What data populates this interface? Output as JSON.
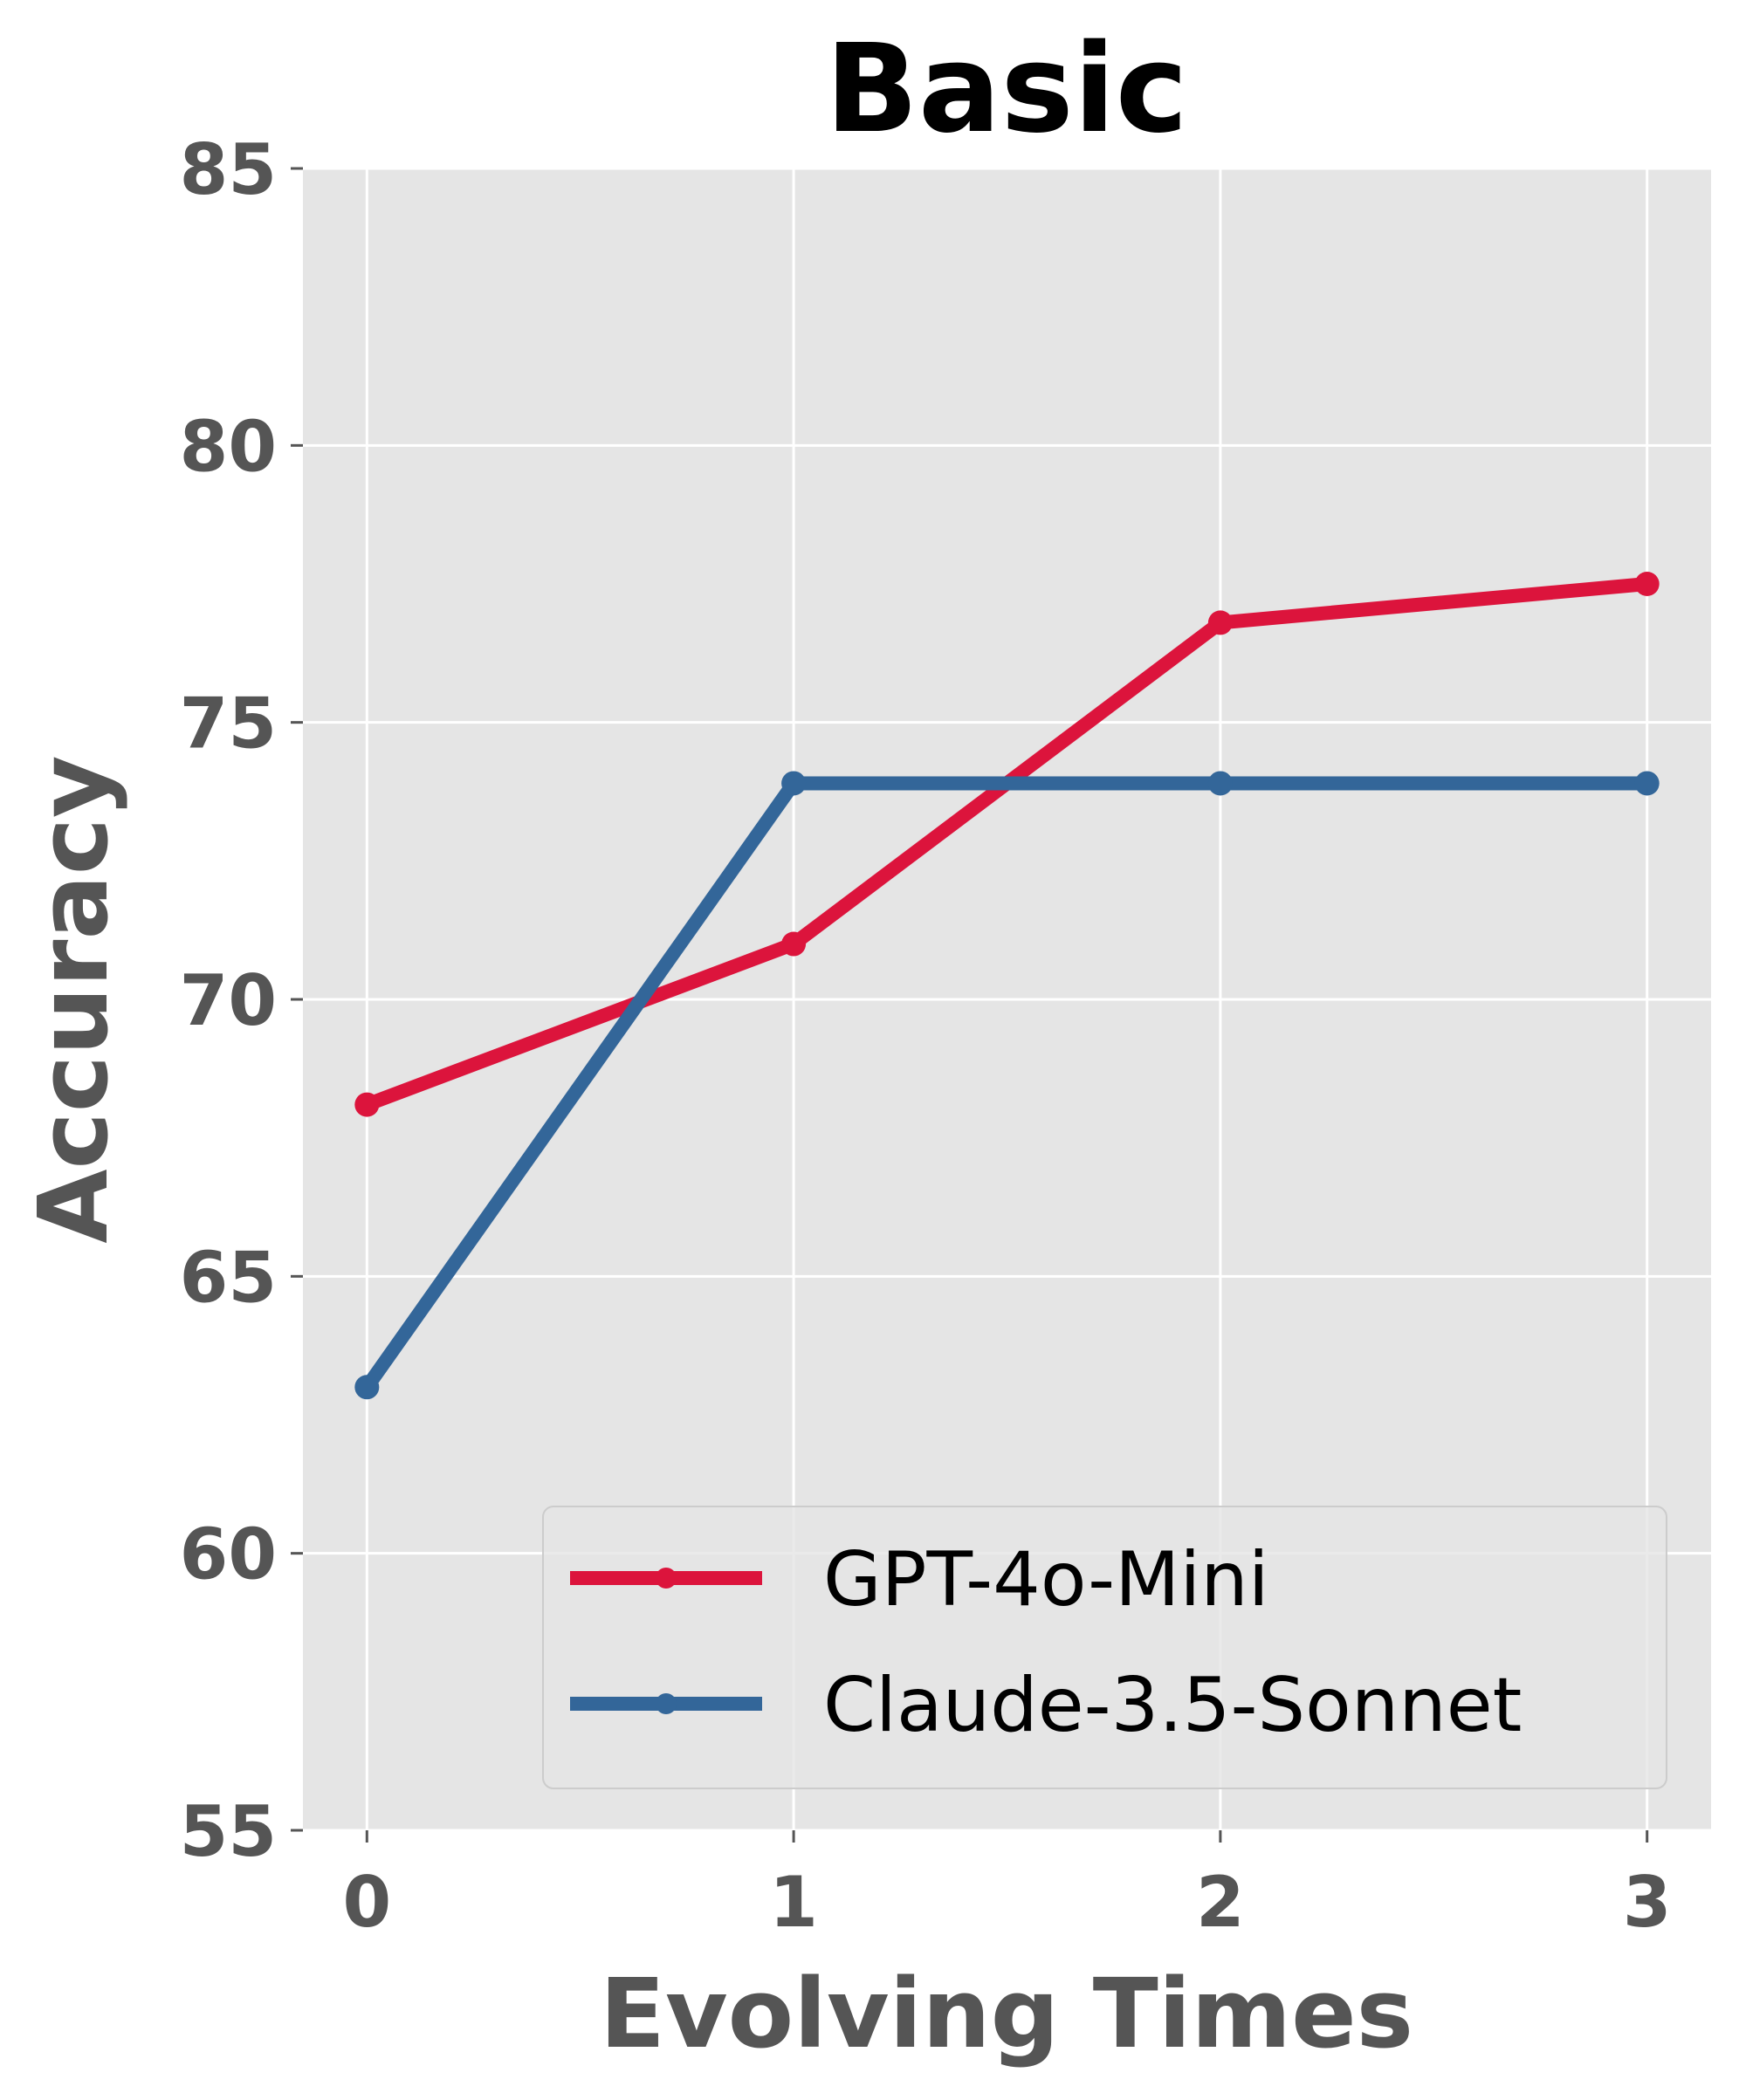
{
  "chart_data": {
    "type": "line",
    "title": "Basic",
    "xlabel": "Evolving Times",
    "ylabel": "Accuracy",
    "x": [
      0,
      1,
      2,
      3
    ],
    "x_tick_labels": [
      "0",
      "1",
      "2",
      "3"
    ],
    "xlim": [
      -0.15,
      3.15
    ],
    "ylim": [
      55,
      85
    ],
    "y_ticks": [
      55,
      60,
      65,
      70,
      75,
      80,
      85
    ],
    "y_tick_labels": [
      "55",
      "60",
      "65",
      "70",
      "75",
      "80",
      "85"
    ],
    "grid": true,
    "legend_position": "lower-right",
    "series": [
      {
        "name": "GPT-4o-Mini",
        "color": "#dc143c",
        "values": [
          68.1,
          71.0,
          76.8,
          77.5
        ]
      },
      {
        "name": "Claude-3.5-Sonnet",
        "color": "#336699",
        "values": [
          63.0,
          73.9,
          73.9,
          73.9
        ]
      }
    ],
    "colors": {
      "plot_background": "#e5e5e5",
      "grid": "#ffffff",
      "tick_text": "#555555",
      "title_text": "#000000"
    }
  }
}
